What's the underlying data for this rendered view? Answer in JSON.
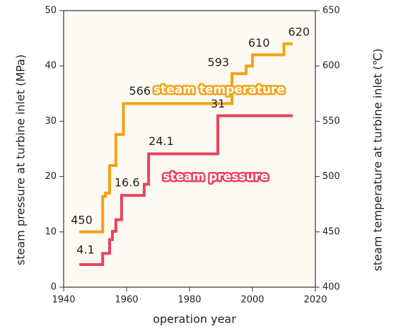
{
  "chart_data": {
    "type": "step",
    "x_label": "operation year",
    "y_label": "steam pressure at turbine inlet (MPa)",
    "y2_label": "steam temperature at turbine inlet (℃)",
    "xlim": [
      1940,
      2020
    ],
    "xticks": [
      1940,
      1960,
      1980,
      2000,
      2020
    ],
    "ylim": [
      0,
      50
    ],
    "yticks": [
      0,
      10,
      20,
      30,
      40,
      50
    ],
    "y2lim": [
      400,
      650
    ],
    "y2ticks": [
      400,
      450,
      500,
      550,
      600,
      650
    ],
    "series": [
      {
        "name": "steam temperature",
        "color": "#f5a112",
        "axis": "y2",
        "x": [
          1945,
          1952.4,
          1953.3,
          1954.6,
          1956.6,
          1959,
          1993.5,
          1998,
          2000,
          2010,
          2012.8
        ],
        "values": [
          450,
          482,
          485,
          510,
          538,
          566,
          593,
          600,
          610,
          620,
          620
        ],
        "value_labels": [
          "450",
          null,
          null,
          null,
          null,
          "566",
          "593",
          null,
          "610",
          "620",
          null
        ]
      },
      {
        "name": "steam pressure",
        "color": "#e8435f",
        "x": [
          1945,
          1952.4,
          1954.6,
          1955.5,
          1956.6,
          1958.4,
          1965.6,
          1967,
          1989,
          2012.8
        ],
        "values": [
          4.1,
          6.1,
          8.6,
          10.1,
          12.2,
          16.6,
          18.6,
          24.1,
          31,
          31
        ],
        "value_labels": [
          "4.1",
          null,
          null,
          null,
          null,
          "16.6",
          null,
          "24.1",
          "31",
          null
        ]
      }
    ]
  }
}
